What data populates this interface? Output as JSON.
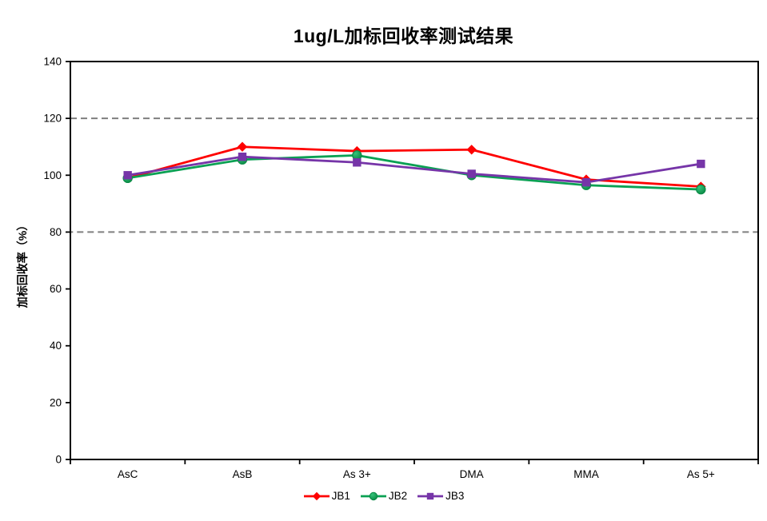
{
  "title": "1ug/L加标回收率测试结果",
  "chart_data": {
    "type": "line",
    "title": "1ug/L加标回收率测试结果",
    "xlabel": "",
    "ylabel": "加标回收率（%）",
    "categories": [
      "AsC",
      "AsB",
      "As 3+",
      "DMA",
      "MMA",
      "As 5+"
    ],
    "series": [
      {
        "name": "JB1",
        "marker": "diamond",
        "color": "#FE0000",
        "marker_color": "#FE0000",
        "values": [
          99,
          110,
          108.5,
          109,
          98.5,
          96
        ]
      },
      {
        "name": "JB2",
        "marker": "circle",
        "color": "#0AA153",
        "marker_color": "#0B8A46",
        "marker_highlight": "#34C47A",
        "values": [
          99,
          105.5,
          107,
          100,
          96.5,
          95
        ]
      },
      {
        "name": "JB3",
        "marker": "square",
        "color": "#7635A8",
        "marker_color": "#7635A8",
        "values": [
          100,
          106.5,
          104.5,
          100.5,
          97.5,
          104
        ]
      }
    ],
    "ylim": [
      0,
      140
    ],
    "ytick_step": 20,
    "ytick_labels": [
      "0",
      "20",
      "40",
      "60",
      "80",
      "100",
      "120",
      "140"
    ],
    "reference_band": {
      "from": 80,
      "to": 120,
      "line_style": "dashed",
      "color": "#7F7F7F"
    },
    "grid": false,
    "legend_position": "bottom",
    "axis_color": "#000000",
    "background_color": "#FFFFFF"
  }
}
